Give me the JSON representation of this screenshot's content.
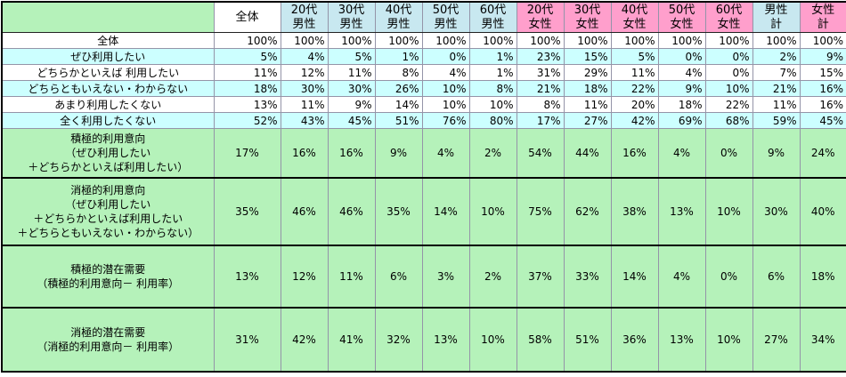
{
  "colors": {
    "green": "#b5f2ba",
    "stripe-cyan": "#ccffff",
    "header-blue": "#c8e8f0",
    "header-pink": "#ff9fcc",
    "border-gray": "#9494a8",
    "border-black": "#000000"
  },
  "table": {
    "corner_label": "",
    "columns": [
      {
        "label": "全体",
        "group": "overall"
      },
      {
        "label": "20代\n男性",
        "group": "male"
      },
      {
        "label": "30代\n男性",
        "group": "male"
      },
      {
        "label": "40代\n男性",
        "group": "male"
      },
      {
        "label": "50代\n男性",
        "group": "male"
      },
      {
        "label": "60代\n男性",
        "group": "male"
      },
      {
        "label": "20代\n女性",
        "group": "female"
      },
      {
        "label": "30代\n女性",
        "group": "female"
      },
      {
        "label": "40代\n女性",
        "group": "female"
      },
      {
        "label": "50代\n女性",
        "group": "female"
      },
      {
        "label": "60代\n女性",
        "group": "female"
      },
      {
        "label": "男性\n計",
        "group": "male-total"
      },
      {
        "label": "女性\n計",
        "group": "female-total"
      }
    ],
    "rows": [
      {
        "label": "全体",
        "values": [
          "100%",
          "100%",
          "100%",
          "100%",
          "100%",
          "100%",
          "100%",
          "100%",
          "100%",
          "100%",
          "100%",
          "100%",
          "100%"
        ]
      },
      {
        "label": "ぜひ利用したい",
        "values": [
          "5%",
          "4%",
          "5%",
          "1%",
          "0%",
          "1%",
          "23%",
          "15%",
          "5%",
          "0%",
          "0%",
          "2%",
          "9%"
        ]
      },
      {
        "label": "どちらかといえば 利用したい",
        "values": [
          "11%",
          "12%",
          "11%",
          "8%",
          "4%",
          "1%",
          "31%",
          "29%",
          "11%",
          "4%",
          "0%",
          "7%",
          "15%"
        ]
      },
      {
        "label": "どちらともいえない・わからない",
        "values": [
          "18%",
          "30%",
          "30%",
          "26%",
          "10%",
          "8%",
          "21%",
          "18%",
          "22%",
          "9%",
          "10%",
          "21%",
          "16%"
        ]
      },
      {
        "label": "あまり利用したくない",
        "values": [
          "13%",
          "11%",
          "9%",
          "14%",
          "10%",
          "10%",
          "8%",
          "11%",
          "20%",
          "18%",
          "22%",
          "11%",
          "16%"
        ]
      },
      {
        "label": "全く利用したくない",
        "values": [
          "52%",
          "43%",
          "45%",
          "51%",
          "76%",
          "80%",
          "17%",
          "27%",
          "42%",
          "69%",
          "68%",
          "59%",
          "45%"
        ]
      }
    ],
    "blocks": [
      {
        "label": "積極的利用意向\n（ぜひ利用したい\n＋どちらかといえば利用したい）",
        "values": [
          "17%",
          "16%",
          "16%",
          "9%",
          "4%",
          "2%",
          "54%",
          "44%",
          "16%",
          "4%",
          "0%",
          "9%",
          "24%"
        ]
      },
      {
        "label": "消極的利用意向\n（ぜひ利用したい\n＋どちらかといえば利用したい\n＋どちらともいえない・わからない）",
        "values": [
          "35%",
          "46%",
          "46%",
          "35%",
          "14%",
          "10%",
          "75%",
          "62%",
          "38%",
          "13%",
          "10%",
          "30%",
          "40%"
        ]
      },
      {
        "label": "積極的潜在需要\n（積極的利用意向－ 利用率）",
        "values": [
          "13%",
          "12%",
          "11%",
          "6%",
          "3%",
          "2%",
          "37%",
          "33%",
          "14%",
          "4%",
          "0%",
          "6%",
          "18%"
        ]
      },
      {
        "label": "消極的潜在需要\n（消極的利用意向－ 利用率）",
        "values": [
          "31%",
          "42%",
          "41%",
          "32%",
          "13%",
          "10%",
          "58%",
          "51%",
          "36%",
          "13%",
          "10%",
          "27%",
          "34%"
        ]
      }
    ]
  }
}
